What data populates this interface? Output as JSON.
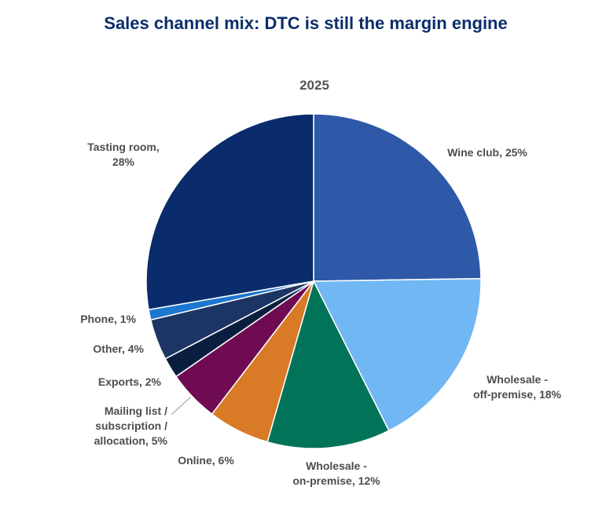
{
  "chart_data": {
    "type": "pie",
    "title": "Sales channel mix: DTC is still the margin engine",
    "subtitle": "2025",
    "unit": "%",
    "start": "12 o'clock, clockwise",
    "slices": [
      {
        "name": "Wine club",
        "value": 25,
        "color": "#2e59a8",
        "label_lines": [
          "Wine club, 25%"
        ]
      },
      {
        "name": "Wholesale - off-premise",
        "value": 18,
        "color": "#70b7f3",
        "label_lines": [
          "Wholesale -",
          "off-premise, 18%"
        ]
      },
      {
        "name": "Wholesale - on-premise",
        "value": 12,
        "color": "#017358",
        "label_lines": [
          "Wholesale -",
          "on-premise, 12%"
        ]
      },
      {
        "name": "Online",
        "value": 6,
        "color": "#d97a26",
        "label_lines": [
          "Online, 6%"
        ]
      },
      {
        "name": "Mailing list / subscription / allocation",
        "value": 5,
        "color": "#6f0b52",
        "label_lines": [
          "Mailing list /",
          "subscription /",
          "allocation, 5%"
        ]
      },
      {
        "name": "Exports",
        "value": 2,
        "color": "#0a1f3f",
        "label_lines": [
          "Exports, 2%"
        ]
      },
      {
        "name": "Other",
        "value": 4,
        "color": "#1d3564",
        "label_lines": [
          "Other, 4%"
        ]
      },
      {
        "name": "Phone",
        "value": 1,
        "color": "#1d76cf",
        "label_lines": [
          "Phone, 1%"
        ]
      },
      {
        "name": "Tasting room",
        "value": 28,
        "color": "#0a2c6c",
        "label_lines": [
          "Tasting room,",
          "28%"
        ]
      }
    ]
  }
}
